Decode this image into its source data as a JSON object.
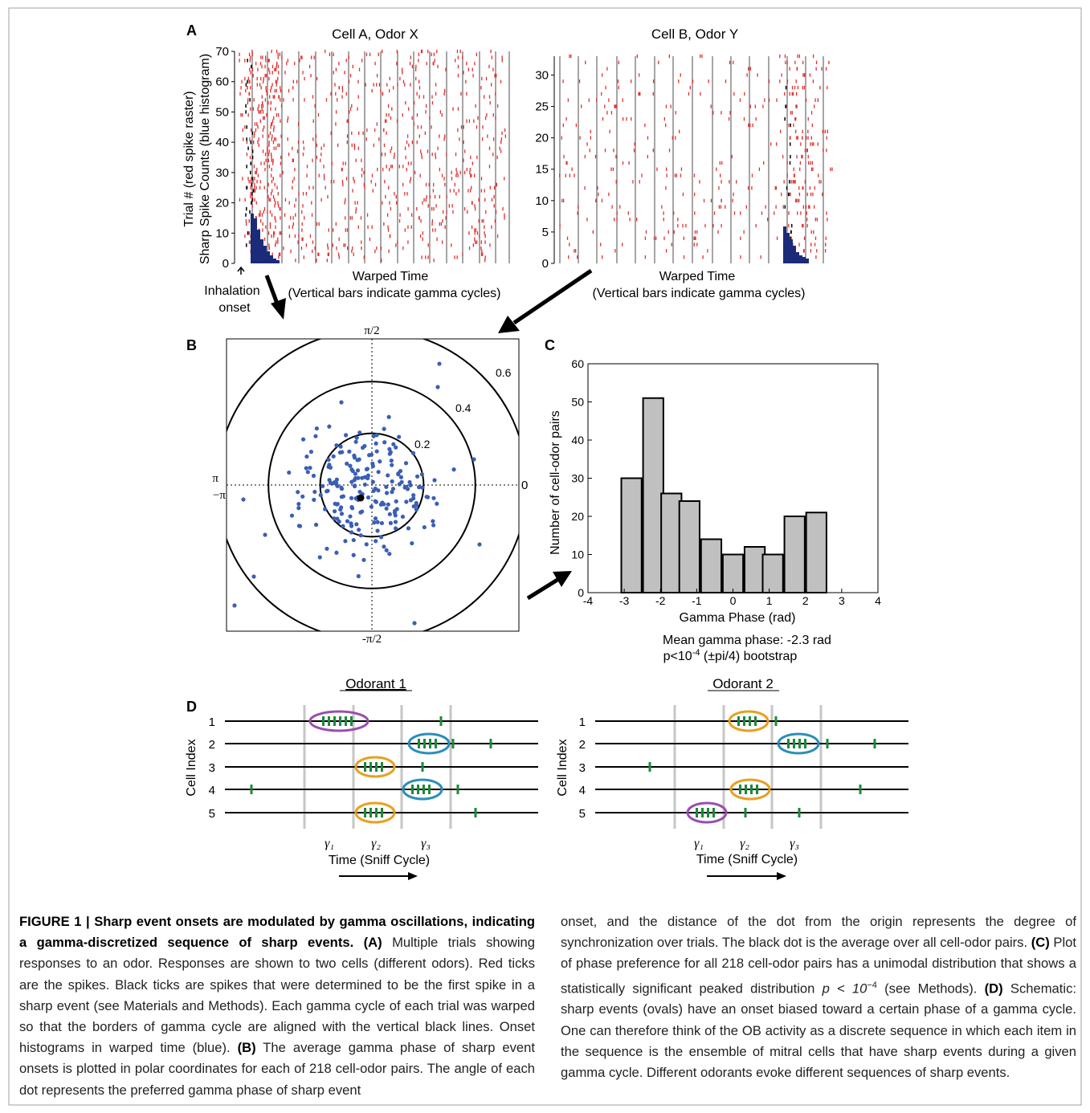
{
  "panelA": {
    "label": "A",
    "left": {
      "title": "Cell A, Odor X",
      "yticks": [
        "70",
        "60",
        "50",
        "40",
        "30",
        "20",
        "10",
        "0"
      ],
      "ylabel1": "Trial # (red spike raster)",
      "ylabel2": "Sharp Spike Counts (blue histogram)",
      "xlabel": "Warped Time",
      "xnote": "(Vertical bars indicate gamma cycles)",
      "inhalation1": "Inhalation",
      "inhalation2": "onset"
    },
    "right": {
      "title": "Cell B, Odor Y",
      "yticks": [
        "30",
        "25",
        "20",
        "15",
        "10",
        "5",
        "0"
      ],
      "xlabel": "Warped Time",
      "xnote": "(Vertical bars indicate gamma cycles)"
    },
    "colors": {
      "spike": "#e03030",
      "first_spike": "#000000",
      "hist": "#1c2a7a"
    }
  },
  "panelB": {
    "label": "B",
    "top": "π/2",
    "bottom": "-π/2",
    "left1": "π",
    "left2": "−π",
    "right": "0",
    "rings": [
      {
        "value": 0.2,
        "label": "0.2"
      },
      {
        "value": 0.4,
        "label": "0.4"
      },
      {
        "value": 0.6,
        "label": "0.6"
      }
    ],
    "dot_color": "#3a5fb5"
  },
  "chart_data": {
    "type": "bar",
    "label": "C",
    "bin_centers": [
      -2.8,
      -2.2,
      -1.7,
      -1.2,
      -0.6,
      0.0,
      0.6,
      1.1,
      1.7,
      2.3
    ],
    "values": [
      30,
      51,
      26,
      24,
      14,
      10,
      12,
      10,
      20,
      21
    ],
    "xlabel": "Gamma Phase (rad)",
    "ylabel": "Number of cell-odor pairs",
    "xlim": [
      -4,
      4
    ],
    "ylim": [
      0,
      60
    ],
    "xticks": [
      "-4",
      "-3",
      "-2",
      "-1",
      "0",
      "1",
      "2",
      "3",
      "4"
    ],
    "yticks": [
      "0",
      "10",
      "20",
      "30",
      "40",
      "50",
      "60"
    ],
    "stats1": "Mean gamma phase: -2.3 rad",
    "stats2_prefix": "p<10",
    "stats2_exp": "-4",
    "stats2_suffix": " (±pi/4) bootstrap",
    "bar_color": "#c0c0c0"
  },
  "panelD": {
    "label": "D",
    "odorant1": "Odorant 1",
    "odorant2": "Odorant 2",
    "ylabel": "Cell Index",
    "rows": [
      "1",
      "2",
      "3",
      "4",
      "5"
    ],
    "gammas": [
      "γ₁",
      "γ₂",
      "γ₃"
    ],
    "xlabel": "Time (Sniff Cycle)",
    "colors": {
      "tick": "#1a8a3a",
      "purple": "#9b4db0",
      "orange": "#e8a020",
      "teal": "#2a8fb8",
      "gridline": "#c6c6c6"
    }
  },
  "caption": {
    "figure_label": "FIGURE 1 | Sharp event onsets are modulated by gamma oscillations, indicating a gamma-discretized sequence of sharp events.",
    "a_label": "(A)",
    "a_text": " Multiple trials showing responses to an odor. Responses are shown to two cells (different odors). Red ticks are the spikes. Black ticks are spikes that were determined to be the first spike in a sharp event (see Materials and Methods). Each gamma cycle of each trial was warped so that the borders of gamma cycle are aligned with the vertical black lines. Onset histograms in warped time (blue). ",
    "b_label": "(B)",
    "b_text": " The average gamma phase of sharp event onsets is plotted in polar coordinates for each of 218 cell-odor pairs. The angle of each dot represents the preferred gamma phase of sharp event onset, and the distance of the dot from the origin represents the degree of synchronization over trials. The black dot is the average over all cell-odor pairs. ",
    "c_label": "(C)",
    "c_text": " Plot of phase preference for all 218 cell-odor pairs has a unimodal distribution that shows a statistically significant peaked distribution ",
    "c_math": "p < 10",
    "c_exp": "−4",
    "c_text2": " (see Methods). ",
    "d_label": "(D)",
    "d_text": " Schematic: sharp events (ovals) have an onset biased toward a certain phase of a gamma cycle. One can therefore think of the OB activity as a discrete sequence in which each item in the sequence is the ensemble of mitral cells that have sharp events during a given gamma cycle. Different odorants evoke different sequences of sharp events."
  }
}
